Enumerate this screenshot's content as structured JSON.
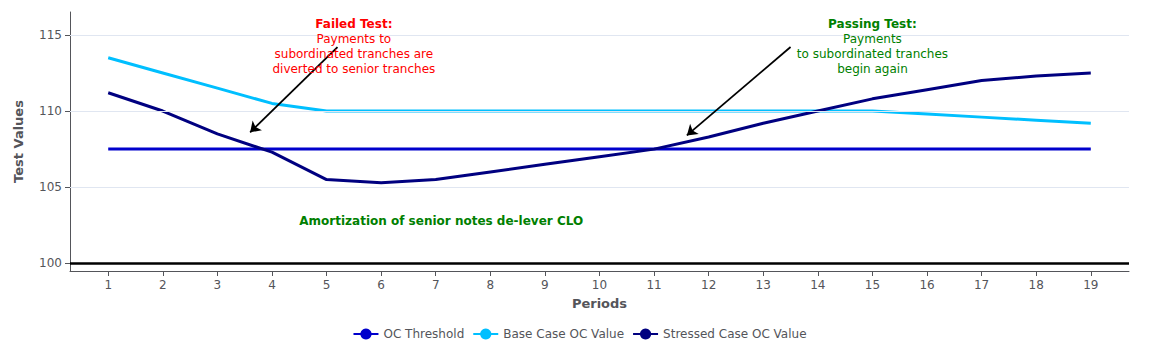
{
  "chart_data": {
    "type": "line",
    "xlabel": "Periods",
    "ylabel": "Test Values",
    "x": [
      1,
      2,
      3,
      4,
      5,
      6,
      7,
      8,
      9,
      10,
      11,
      12,
      13,
      14,
      15,
      16,
      17,
      18,
      19
    ],
    "series": [
      {
        "name": "OC Threshold",
        "color": "#0000CC",
        "values": [
          107.5,
          107.5,
          107.5,
          107.5,
          107.5,
          107.5,
          107.5,
          107.5,
          107.5,
          107.5,
          107.5,
          107.5,
          107.5,
          107.5,
          107.5,
          107.5,
          107.5,
          107.5,
          107.5
        ]
      },
      {
        "name": "Base Case OC Value",
        "color": "#00BFFF",
        "values": [
          113.5,
          112.5,
          111.5,
          110.5,
          110.0,
          110.0,
          110.0,
          110.0,
          110.0,
          110.0,
          110.0,
          110.0,
          110.0,
          110.0,
          110.0,
          109.8,
          109.6,
          109.4,
          109.2
        ]
      },
      {
        "name": "Stressed Case OC Value",
        "color": "#000080",
        "values": [
          111.2,
          110.0,
          108.5,
          107.3,
          105.5,
          105.3,
          105.5,
          106.0,
          106.5,
          107.0,
          107.5,
          108.3,
          109.2,
          110.0,
          110.8,
          111.4,
          112.0,
          112.3,
          112.5
        ]
      }
    ],
    "xlim": [
      0.3,
      19.7
    ],
    "xticks": [
      1,
      2,
      3,
      4,
      5,
      6,
      7,
      8,
      9,
      10,
      11,
      12,
      13,
      14,
      15,
      16,
      17,
      18,
      19
    ],
    "ylim": [
      99.5,
      116.5
    ],
    "yticks": [
      100,
      105,
      110,
      115
    ],
    "grid": true,
    "legend": "bottom",
    "hline": 100,
    "arrows": [
      {
        "from": [
          5.2,
          114.2
        ],
        "to": [
          3.6,
          108.6
        ]
      },
      {
        "from": [
          13.5,
          114.2
        ],
        "to": [
          11.6,
          108.4
        ]
      }
    ],
    "annotations": [
      {
        "title": "Failed Test:",
        "text": "Payments to\nsubordinated tranches are\ndiverted to senior tranches",
        "x": 5.5,
        "y": 116.2,
        "color": "red"
      },
      {
        "title": "Passing Test:",
        "text": "Payments\nto subordinated tranches\nbegin again",
        "x": 15.0,
        "y": 116.2,
        "color": "green"
      },
      {
        "text": "Amortization of senior notes de-lever CLO",
        "x": 4.5,
        "y": 102.8,
        "color": "green"
      }
    ]
  }
}
